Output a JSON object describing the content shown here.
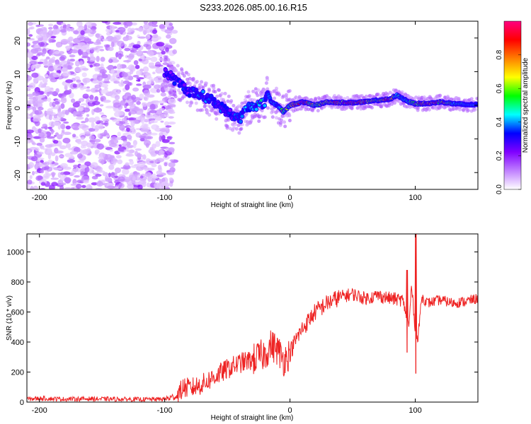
{
  "title": "S233.2026.085.00.16.R15",
  "chart_data": [
    {
      "id": "spectrogram",
      "type": "heatmap",
      "xlabel": "Height of straight line (km)",
      "ylabel": "Frequency (Hz)",
      "xlim": [
        -210,
        150
      ],
      "ylim": [
        -25,
        25
      ],
      "xticks": [
        -200,
        -100,
        0,
        100
      ],
      "xtick_labels": [
        "-200",
        "-100",
        "0",
        "100"
      ],
      "yticks": [
        -20,
        -10,
        0,
        10,
        20
      ],
      "ytick_labels": [
        "-20",
        "-10",
        "0",
        "10",
        "20"
      ],
      "colorbar": {
        "label": "Normalized spectral amplitude",
        "range": [
          0,
          1
        ],
        "ticks": [
          0.0,
          0.2,
          0.4,
          0.6,
          0.8
        ],
        "tick_labels": [
          "0.0",
          "0.2",
          "0.4",
          "0.6",
          "0.8"
        ],
        "colormap": [
          "#ffffff",
          "#c080ff",
          "#8000ff",
          "#0000ff",
          "#00ffff",
          "#00ff00",
          "#ffff00",
          "#ff8000",
          "#ff0000",
          "#ff0080"
        ]
      },
      "noise_region_x": [
        -210,
        -100
      ],
      "signal_trace": {
        "x": [
          -100,
          -90,
          -80,
          -70,
          -60,
          -50,
          -40,
          -35,
          -30,
          -25,
          -20,
          -18,
          -15,
          -10,
          -5,
          0,
          10,
          20,
          30,
          40,
          50,
          60,
          70,
          80,
          85,
          90,
          95,
          100,
          110,
          120,
          130,
          140,
          150
        ],
        "freq": [
          10,
          7,
          4,
          3,
          1,
          -2,
          -4,
          -1,
          0,
          0,
          1,
          4,
          1,
          0,
          -2,
          0,
          1,
          0,
          1,
          0.8,
          0.8,
          1,
          1.5,
          1.8,
          3,
          2,
          1,
          0.5,
          0.5,
          1,
          0.5,
          0.2,
          0.2
        ],
        "amplitude": [
          0.3,
          0.3,
          0.3,
          0.35,
          0.35,
          0.3,
          0.35,
          0.4,
          0.4,
          0.45,
          0.4,
          0.35,
          0.4,
          0.4,
          0.7,
          0.6,
          0.9,
          0.6,
          0.7,
          0.9,
          0.9,
          0.8,
          0.6,
          0.9,
          0.5,
          0.4,
          0.5,
          0.7,
          0.9,
          0.8,
          0.5,
          0.4,
          0.4
        ]
      }
    },
    {
      "id": "snr",
      "type": "line",
      "xlabel": "Height of straight line (km)",
      "ylabel": "SNR (10 * v/v)",
      "xlim": [
        -210,
        150
      ],
      "ylim": [
        0,
        1120
      ],
      "xticks": [
        -200,
        -100,
        0,
        100
      ],
      "xtick_labels": [
        "-200",
        "-100",
        "0",
        "100"
      ],
      "yticks": [
        0,
        200,
        400,
        600,
        800,
        1000
      ],
      "ytick_labels": [
        "0",
        "200",
        "400",
        "600",
        "800",
        "1000"
      ],
      "color": "#ee2222",
      "series": [
        {
          "name": "SNR",
          "x": [
            -210,
            -200,
            -180,
            -160,
            -140,
            -120,
            -100,
            -90,
            -85,
            -80,
            -70,
            -60,
            -50,
            -40,
            -30,
            -20,
            -15,
            -10,
            -5,
            0,
            5,
            10,
            20,
            30,
            40,
            50,
            60,
            70,
            80,
            90,
            95,
            97,
            100,
            102,
            105,
            110,
            120,
            130,
            140,
            150
          ],
          "y": [
            20,
            25,
            20,
            22,
            20,
            18,
            20,
            40,
            100,
            90,
            120,
            170,
            220,
            260,
            280,
            320,
            380,
            350,
            280,
            330,
            420,
            490,
            600,
            660,
            700,
            720,
            690,
            710,
            690,
            680,
            500,
            780,
            480,
            400,
            700,
            660,
            680,
            660,
            670,
            690
          ]
        }
      ],
      "spikes": [
        {
          "x": 93.5,
          "y_low": 330,
          "y_high": 880
        },
        {
          "x": 100.5,
          "y_low": 190,
          "y_high": 1120
        }
      ],
      "noise_amplitude": [
        {
          "x_from": -210,
          "x_to": -100,
          "amp": 15
        },
        {
          "x_from": -100,
          "x_to": -90,
          "amp": 25
        },
        {
          "x_from": -90,
          "x_to": -30,
          "amp": 70
        },
        {
          "x_from": -30,
          "x_to": 0,
          "amp": 110
        },
        {
          "x_from": 0,
          "x_to": 40,
          "amp": 60
        },
        {
          "x_from": 40,
          "x_to": 90,
          "amp": 45
        },
        {
          "x_from": 90,
          "x_to": 150,
          "amp": 35
        }
      ]
    }
  ]
}
